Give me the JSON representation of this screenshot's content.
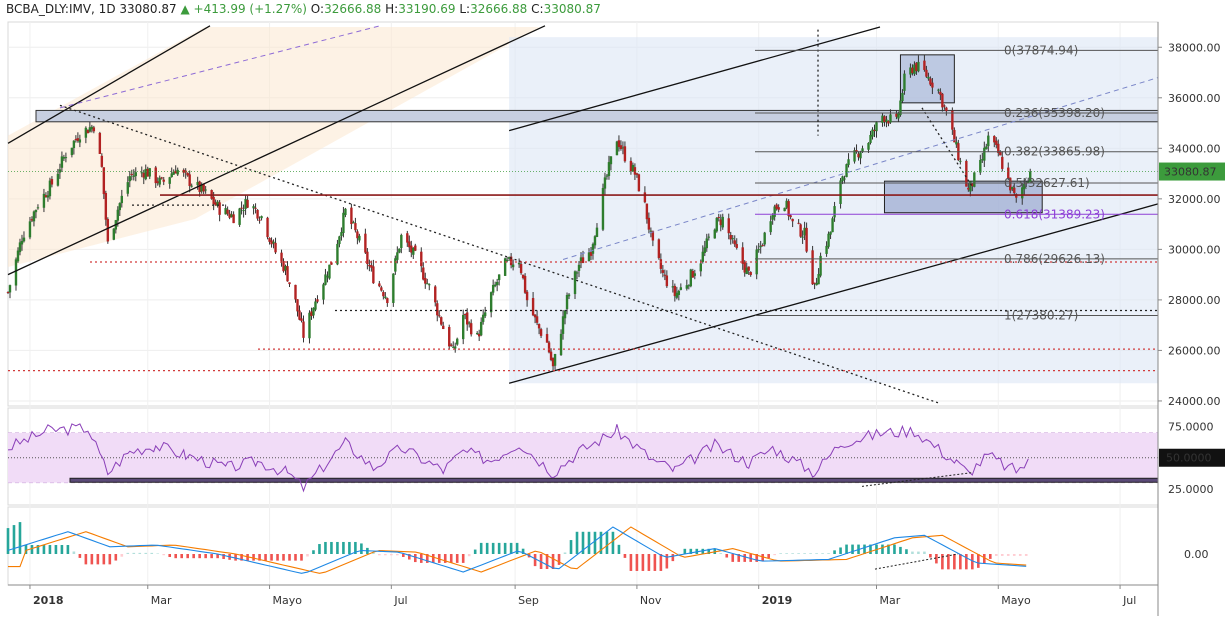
{
  "header": {
    "symbol": "BCBA_DLY:IMV, 1D",
    "last": "33080.87",
    "change": "+413.99 (+1.27%)",
    "o_label": "O:",
    "o_value": "32666.88",
    "h_label": "H:",
    "h_value": "33190.69",
    "l_label": "L:",
    "l_value": "32666.88",
    "c_label": "C:",
    "c_value": "33080.87"
  },
  "price_axis": {
    "ticks": [
      {
        "value": 38000,
        "label": "38000.00"
      },
      {
        "value": 36000,
        "label": "36000.00"
      },
      {
        "value": 34000,
        "label": "34000.00"
      },
      {
        "value": 32000,
        "label": "32000.00"
      },
      {
        "value": 30000,
        "label": "30000.00"
      },
      {
        "value": 28000,
        "label": "28000.00"
      },
      {
        "value": 26000,
        "label": "26000.00"
      },
      {
        "value": 24000,
        "label": "24000.00"
      }
    ],
    "last_price_tag": "33080.87",
    "last_price_color": "#3c9b3c"
  },
  "rsi_axis": {
    "ticks": [
      {
        "value": 75,
        "label": "75.0000"
      },
      {
        "value": 25,
        "label": "25.0000"
      }
    ],
    "tag_value": 50,
    "tag_label": "50.0000"
  },
  "macd_axis": {
    "ticks": [
      {
        "value": 0,
        "label": "0.00"
      }
    ]
  },
  "time_axis": {
    "labels": [
      {
        "date": "2018-01-01",
        "label": "2018",
        "bold": true
      },
      {
        "date": "2018-03-01",
        "label": "Mar"
      },
      {
        "date": "2018-05-01",
        "label": "Mayo"
      },
      {
        "date": "2018-07-01",
        "label": "Jul"
      },
      {
        "date": "2018-09-01",
        "label": "Sep"
      },
      {
        "date": "2018-11-01",
        "label": "Nov"
      },
      {
        "date": "2019-01-01",
        "label": "2019",
        "bold": true
      },
      {
        "date": "2019-03-01",
        "label": "Mar"
      },
      {
        "date": "2019-05-01",
        "label": "Mayo"
      },
      {
        "date": "2019-07-01",
        "label": "Jul"
      }
    ]
  },
  "fibonacci": {
    "levels": [
      {
        "ratio": 0,
        "price": 37874.94,
        "label": "0(37874.94)",
        "color": "#555555"
      },
      {
        "ratio": 0.236,
        "price": 35398.2,
        "label": "0.236(35398.20)",
        "color": "#555555"
      },
      {
        "ratio": 0.382,
        "price": 33865.98,
        "label": "0.382(33865.98)",
        "color": "#555555"
      },
      {
        "ratio": 0.5,
        "price": 32627.61,
        "label": "0.5(32627.61)",
        "color": "#555555"
      },
      {
        "ratio": 0.618,
        "price": 31389.23,
        "label": "0.618(31389.23)",
        "color": "#8e3fd6"
      },
      {
        "ratio": 0.786,
        "price": 29626.13,
        "label": "0.786(29626.13)",
        "color": "#555555"
      },
      {
        "ratio": 1,
        "price": 27380.27,
        "label": "1(27380.27)",
        "color": "#555555"
      }
    ]
  },
  "chart_data": {
    "type": "candlestick",
    "title": "BCBA_DLY:IMV, 1D",
    "x_range": [
      "2017-12-21",
      "2019-07-20"
    ],
    "ylim": [
      23800,
      39000
    ],
    "grid": true,
    "close_anchors": [
      [
        "2017-12-21",
        28300
      ],
      [
        "2017-12-28",
        30500
      ],
      [
        "2018-01-05",
        31800
      ],
      [
        "2018-01-12",
        32600
      ],
      [
        "2018-01-19",
        33800
      ],
      [
        "2018-01-26",
        34600
      ],
      [
        "2018-02-02",
        34900
      ],
      [
        "2018-02-06",
        33200
      ],
      [
        "2018-02-09",
        30200
      ],
      [
        "2018-02-14",
        31600
      ],
      [
        "2018-02-20",
        32900
      ],
      [
        "2018-02-28",
        33100
      ],
      [
        "2018-03-08",
        32600
      ],
      [
        "2018-03-15",
        33200
      ],
      [
        "2018-03-22",
        32700
      ],
      [
        "2018-03-30",
        32200
      ],
      [
        "2018-04-06",
        31600
      ],
      [
        "2018-04-13",
        31300
      ],
      [
        "2018-04-20",
        31900
      ],
      [
        "2018-04-27",
        31300
      ],
      [
        "2018-05-04",
        29900
      ],
      [
        "2018-05-09",
        29200
      ],
      [
        "2018-05-14",
        27900
      ],
      [
        "2018-05-18",
        26600
      ],
      [
        "2018-05-24",
        28000
      ],
      [
        "2018-06-01",
        29500
      ],
      [
        "2018-06-08",
        31500
      ],
      [
        "2018-06-14",
        30500
      ],
      [
        "2018-06-22",
        28900
      ],
      [
        "2018-06-29",
        28100
      ],
      [
        "2018-07-06",
        30500
      ],
      [
        "2018-07-13",
        29700
      ],
      [
        "2018-07-20",
        28500
      ],
      [
        "2018-07-27",
        26900
      ],
      [
        "2018-08-01",
        25900
      ],
      [
        "2018-08-06",
        27400
      ],
      [
        "2018-08-13",
        26500
      ],
      [
        "2018-08-20",
        28200
      ],
      [
        "2018-08-27",
        29400
      ],
      [
        "2018-09-03",
        29600
      ],
      [
        "2018-09-07",
        28000
      ],
      [
        "2018-09-12",
        27000
      ],
      [
        "2018-09-17",
        26300
      ],
      [
        "2018-09-20",
        25300
      ],
      [
        "2018-09-27",
        28000
      ],
      [
        "2018-10-03",
        29400
      ],
      [
        "2018-10-09",
        30000
      ],
      [
        "2018-10-16",
        32600
      ],
      [
        "2018-10-22",
        34400
      ],
      [
        "2018-10-26",
        33700
      ],
      [
        "2018-10-31",
        33000
      ],
      [
        "2018-11-05",
        31700
      ],
      [
        "2018-11-09",
        30100
      ],
      [
        "2018-11-14",
        29000
      ],
      [
        "2018-11-20",
        28200
      ],
      [
        "2018-11-26",
        28700
      ],
      [
        "2018-12-03",
        29600
      ],
      [
        "2018-12-10",
        31000
      ],
      [
        "2018-12-14",
        31200
      ],
      [
        "2018-12-19",
        30200
      ],
      [
        "2018-12-27",
        29000
      ],
      [
        "2019-01-03",
        30300
      ],
      [
        "2019-01-08",
        31600
      ],
      [
        "2019-01-14",
        31900
      ],
      [
        "2019-01-18",
        31000
      ],
      [
        "2019-01-24",
        30600
      ],
      [
        "2019-01-29",
        28400
      ],
      [
        "2019-02-01",
        29700
      ],
      [
        "2019-02-06",
        30700
      ],
      [
        "2019-02-11",
        32800
      ],
      [
        "2019-02-18",
        33700
      ],
      [
        "2019-02-25",
        34300
      ],
      [
        "2019-03-04",
        35300
      ],
      [
        "2019-03-11",
        35000
      ],
      [
        "2019-03-15",
        36700
      ],
      [
        "2019-03-20",
        37300
      ],
      [
        "2019-03-25",
        37000
      ],
      [
        "2019-04-01",
        36300
      ],
      [
        "2019-04-05",
        35400
      ],
      [
        "2019-04-10",
        34000
      ],
      [
        "2019-04-16",
        32300
      ],
      [
        "2019-04-22",
        33300
      ],
      [
        "2019-04-26",
        34400
      ],
      [
        "2019-05-01",
        33800
      ],
      [
        "2019-05-06",
        32700
      ],
      [
        "2019-05-10",
        31900
      ],
      [
        "2019-05-14",
        32600
      ],
      [
        "2019-05-17",
        33080.87
      ]
    ],
    "rsi_anchors": [
      [
        "2017-12-21",
        58
      ],
      [
        "2018-01-10",
        72
      ],
      [
        "2018-01-30",
        74
      ],
      [
        "2018-02-09",
        38
      ],
      [
        "2018-02-20",
        55
      ],
      [
        "2018-03-05",
        60
      ],
      [
        "2018-03-20",
        52
      ],
      [
        "2018-04-10",
        42
      ],
      [
        "2018-04-25",
        47
      ],
      [
        "2018-05-10",
        38
      ],
      [
        "2018-05-18",
        26
      ],
      [
        "2018-06-08",
        62
      ],
      [
        "2018-06-22",
        42
      ],
      [
        "2018-07-06",
        58
      ],
      [
        "2018-07-27",
        40
      ],
      [
        "2018-08-06",
        55
      ],
      [
        "2018-08-20",
        48
      ],
      [
        "2018-09-03",
        62
      ],
      [
        "2018-09-20",
        38
      ],
      [
        "2018-10-03",
        55
      ],
      [
        "2018-10-22",
        72
      ],
      [
        "2018-11-09",
        48
      ],
      [
        "2018-11-20",
        40
      ],
      [
        "2018-12-10",
        60
      ],
      [
        "2018-12-27",
        46
      ],
      [
        "2019-01-08",
        58
      ],
      [
        "2019-01-29",
        38
      ],
      [
        "2019-02-11",
        62
      ],
      [
        "2019-03-04",
        70
      ],
      [
        "2019-03-20",
        72
      ],
      [
        "2019-04-10",
        46
      ],
      [
        "2019-04-16",
        38
      ],
      [
        "2019-04-26",
        52
      ],
      [
        "2019-05-06",
        42
      ],
      [
        "2019-05-10",
        40
      ],
      [
        "2019-05-17",
        47
      ]
    ],
    "macd_anchors": [
      [
        "2017-12-21",
        0.1
      ],
      [
        "2018-01-20",
        0.62
      ],
      [
        "2018-02-10",
        0.2
      ],
      [
        "2018-03-05",
        0.25
      ],
      [
        "2018-04-05",
        0.0
      ],
      [
        "2018-05-18",
        -0.55
      ],
      [
        "2018-06-15",
        0.1
      ],
      [
        "2018-07-05",
        0.05
      ],
      [
        "2018-08-06",
        -0.5
      ],
      [
        "2018-09-03",
        0.1
      ],
      [
        "2018-09-22",
        -0.45
      ],
      [
        "2018-10-20",
        0.75
      ],
      [
        "2018-11-15",
        -0.1
      ],
      [
        "2018-12-10",
        0.15
      ],
      [
        "2019-01-02",
        -0.2
      ],
      [
        "2019-02-05",
        -0.15
      ],
      [
        "2019-03-10",
        0.45
      ],
      [
        "2019-03-25",
        0.52
      ],
      [
        "2019-04-20",
        -0.25
      ],
      [
        "2019-05-17",
        -0.35
      ]
    ]
  }
}
